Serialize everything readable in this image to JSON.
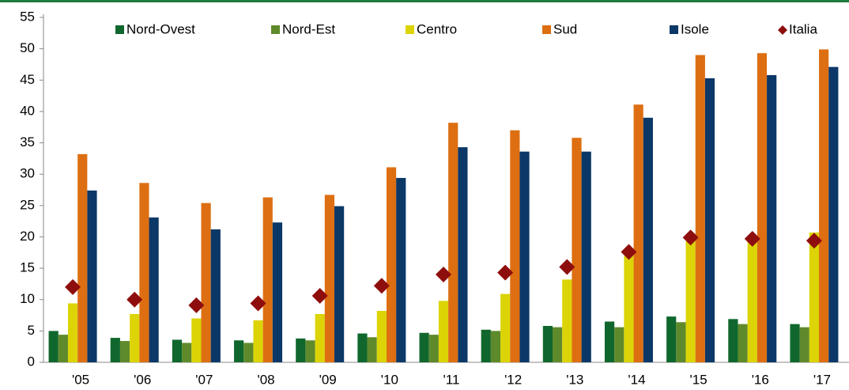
{
  "chart_data": {
    "type": "bar",
    "categories": [
      "'05",
      "'06",
      "'07",
      "'08",
      "'09",
      "'10",
      "'11",
      "'12",
      "'13",
      "'14",
      "'15",
      "'16",
      "'17"
    ],
    "series": [
      {
        "name": "Nord-Ovest",
        "color": "#10672d",
        "values": [
          5.0,
          3.9,
          3.6,
          3.5,
          3.8,
          4.6,
          4.7,
          5.2,
          5.8,
          6.5,
          7.3,
          6.9,
          6.1
        ]
      },
      {
        "name": "Nord-Est",
        "color": "#5f8a2c",
        "values": [
          4.4,
          3.4,
          3.1,
          3.1,
          3.5,
          4.0,
          4.4,
          5.0,
          5.6,
          5.6,
          6.4,
          6.1,
          5.6
        ]
      },
      {
        "name": "Centro",
        "color": "#dcd406",
        "values": [
          9.4,
          7.7,
          7.0,
          6.7,
          7.7,
          8.2,
          9.8,
          10.9,
          13.2,
          17.0,
          19.8,
          19.5,
          20.7
        ]
      },
      {
        "name": "Sud",
        "color": "#dd6f12",
        "values": [
          33.2,
          28.6,
          25.4,
          26.3,
          26.7,
          31.1,
          38.2,
          37.0,
          35.8,
          41.1,
          49.0,
          49.3,
          49.9
        ]
      },
      {
        "name": "Isole",
        "color": "#0c3868",
        "values": [
          27.4,
          23.1,
          21.2,
          22.3,
          24.9,
          29.4,
          34.3,
          33.6,
          33.6,
          39.0,
          45.3,
          45.8,
          47.1
        ]
      },
      {
        "name": "Italia",
        "color": "#8e0d0d",
        "marker": "diamond",
        "values": [
          12.0,
          10.0,
          9.1,
          9.4,
          10.6,
          12.2,
          14.0,
          14.3,
          15.2,
          17.6,
          19.9,
          19.7,
          19.4
        ]
      }
    ],
    "ylim": [
      0,
      55
    ],
    "yticks": [
      0,
      5,
      10,
      15,
      20,
      25,
      30,
      35,
      40,
      45,
      50,
      55
    ],
    "grid": false
  }
}
